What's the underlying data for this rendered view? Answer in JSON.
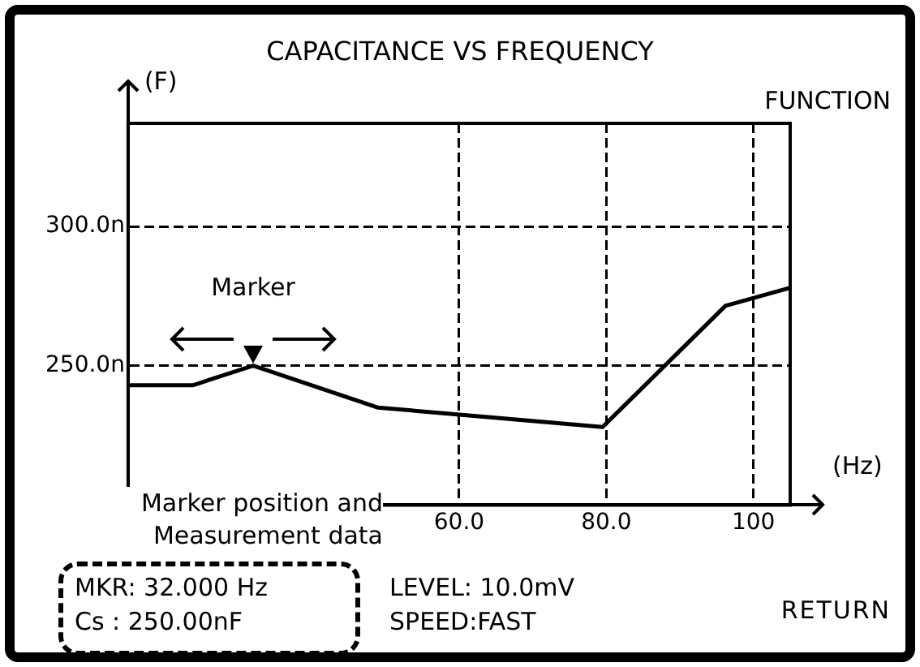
{
  "chart_data": {
    "type": "line",
    "title": "CAPACITANCE VS FREQUENCY",
    "xlabel": "(Hz)",
    "ylabel": "(F)",
    "x": [
      15,
      23.8,
      32,
      48.9,
      79.5,
      96.2,
      105
    ],
    "series": [
      {
        "color": "#000000",
        "values": [
          243,
          243,
          250,
          235,
          228,
          271.5,
          278
        ]
      }
    ],
    "xlim": [
      15,
      105
    ],
    "xticks": [
      {
        "value": 60,
        "label": "60.0"
      },
      {
        "value": 80,
        "label": "80.0"
      },
      100
    ],
    "ylim": [
      200,
      337
    ],
    "yticks": [
      {
        "value": 250,
        "label": "250.0n"
      },
      {
        "value": 300,
        "label": "300.0n"
      }
    ],
    "grid": true,
    "marker": "none",
    "line_style": "solid",
    "annotations": [
      {
        "text": "Marker",
        "x": 32,
        "y": 250
      },
      "Marker position and Measurement data",
      "MKR: 32.000 Hz",
      "Cs : 250.00nF",
      "LEVEL: 10.0mV",
      "SPEED:FAST",
      "FUNCTION",
      "RETURN"
    ]
  }
}
